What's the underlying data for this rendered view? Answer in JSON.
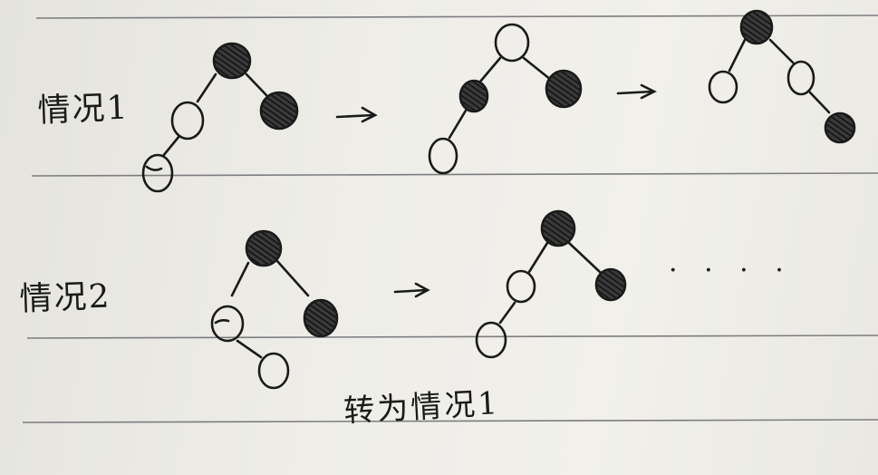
{
  "case1_label": "情况1",
  "case2_label": "情况2",
  "case2_note": "转为情况1",
  "ellipsis": "· · · ·",
  "ink_color": "#1a1a1a",
  "line_color": "#7d7d80",
  "node_fill_black": "#2a2a2a",
  "node_fill_white": "none"
}
